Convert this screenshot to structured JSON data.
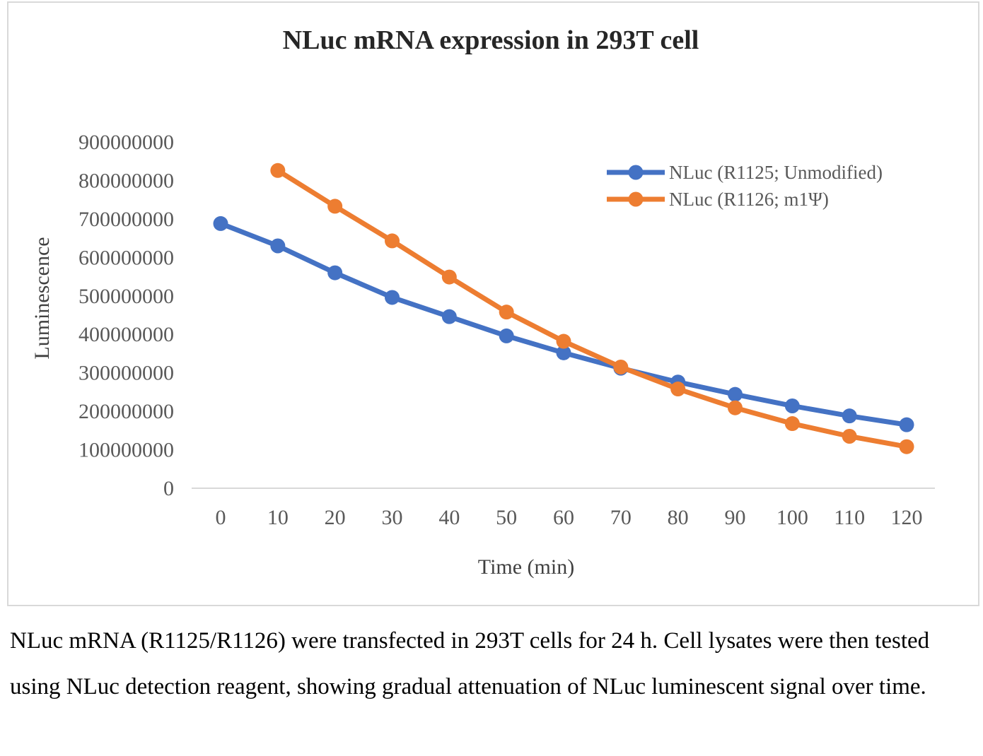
{
  "chart_data": {
    "type": "line",
    "title": "NLuc mRNA expression in 293T cell",
    "xlabel": "Time (min)",
    "ylabel": "Luminescence",
    "x": [
      0,
      10,
      20,
      30,
      40,
      50,
      60,
      70,
      80,
      90,
      100,
      110,
      120
    ],
    "ylim": [
      0,
      900000000
    ],
    "yticks": [
      "0",
      "100000000",
      "200000000",
      "300000000",
      "400000000",
      "500000000",
      "600000000",
      "700000000",
      "800000000",
      "900000000"
    ],
    "grid": false,
    "legend_position": "top-right",
    "series": [
      {
        "name": "NLuc (R1125; Unmodified)",
        "color": "#4472C4",
        "values": [
          688000000,
          630000000,
          560000000,
          496000000,
          446000000,
          396000000,
          352000000,
          312000000,
          276000000,
          244000000,
          214000000,
          188000000,
          165000000
        ]
      },
      {
        "name": "NLuc (R1126; m1Ψ)",
        "color": "#ED7D31",
        "values": [
          null,
          826000000,
          733000000,
          643000000,
          549000000,
          458000000,
          382000000,
          315000000,
          258000000,
          209000000,
          168000000,
          135000000,
          108000000
        ]
      }
    ]
  },
  "caption": "NLuc mRNA (R1125/R1126) were transfected in 293T cells for 24 h. Cell lysates were then tested using NLuc detection reagent, showing gradual attenuation of NLuc luminescent signal over time."
}
